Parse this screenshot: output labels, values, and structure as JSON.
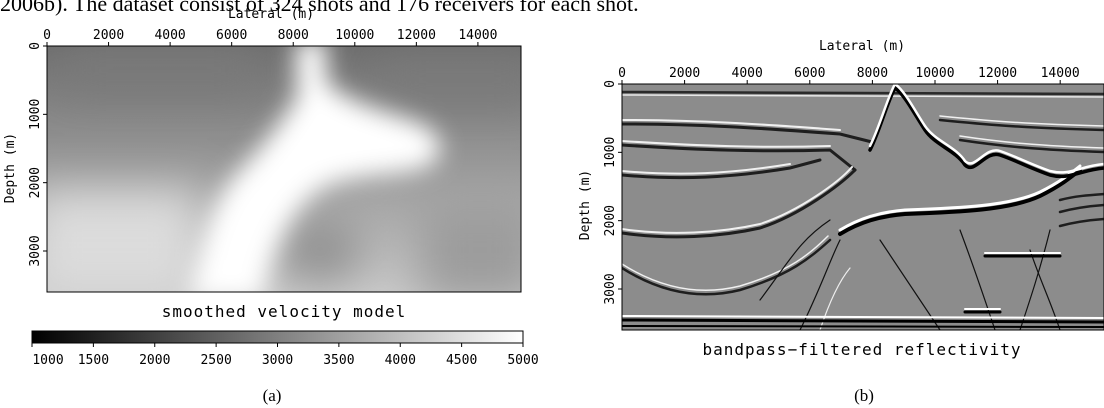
{
  "top_text": "2006b). The dataset consist of 324 shots and 176 receivers for each shot.",
  "panel_a": {
    "xlabel": "Lateral (m)",
    "ylabel": "Depth (m)",
    "x_ticks": [
      "0",
      "2000",
      "4000",
      "6000",
      "8000",
      "10000",
      "12000",
      "14000"
    ],
    "y_ticks": [
      "0",
      "1000",
      "2000",
      "3000"
    ],
    "title": "smoothed velocity model",
    "colorbar_ticks": [
      "1000",
      "1500",
      "2000",
      "2500",
      "3000",
      "3500",
      "4000",
      "4500",
      "5000"
    ],
    "colorbar_range": [
      1000,
      5000
    ],
    "sublabel": "(a)"
  },
  "panel_b": {
    "xlabel": "Lateral (m)",
    "ylabel": "Depth (m)",
    "x_ticks": [
      "0",
      "2000",
      "4000",
      "6000",
      "8000",
      "10000",
      "12000",
      "14000"
    ],
    "y_ticks": [
      "0",
      "1000",
      "2000",
      "3000"
    ],
    "title": "bandpass−filtered reflectivity",
    "sublabel": "(b)"
  },
  "chart_data": [
    {
      "type": "heatmap",
      "title": "smoothed velocity model",
      "xlabel": "Lateral (m)",
      "ylabel": "Depth (m)",
      "xlim": [
        0,
        15400
      ],
      "ylim": [
        0,
        3600
      ],
      "colorbar": {
        "min": 1000,
        "max": 5000,
        "colormap": "grayscale (dark = low, white = high)"
      }
    },
    {
      "type": "heatmap",
      "title": "bandpass−filtered reflectivity",
      "xlabel": "Lateral (m)",
      "ylabel": "Depth (m)",
      "xlim": [
        0,
        15400
      ],
      "ylim": [
        0,
        3600
      ]
    }
  ]
}
